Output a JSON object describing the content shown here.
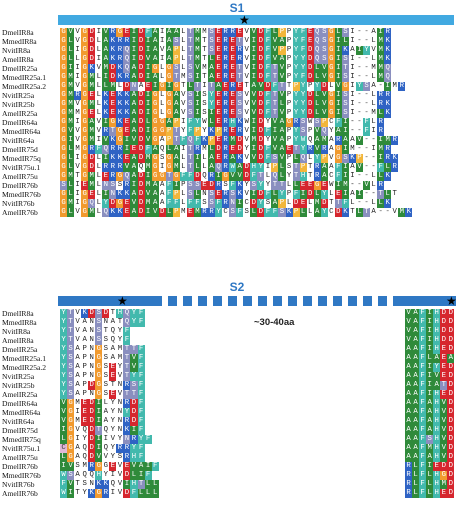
{
  "s1": {
    "label": "S1",
    "names": [
      "DmelIR8a",
      "MmedIR8a",
      "NvitIR8a",
      "AmelIR8a",
      "DmelIR25a",
      "MmedIR25a.1",
      "MmedIR25a.2",
      "NvitIR25a",
      "NvitIR25b",
      "AmelIR25a",
      "DmelIR64a",
      "MmedIR64a",
      "NvitIR64a",
      "DmelIR75d",
      "MmedIR75q",
      "NvitIR75u.1",
      "AmelIR75u",
      "DmelIR76b",
      "MmedIR76b",
      "NvitIR76b",
      "AmelIR76b"
    ],
    "seqs": [
      "GVVGDIVRGEIDFAIAALTMMSERREVVDFLPPYFEQSGLSI--AIR",
      "GLVGDLAKRRIDIAIASLTMTSERETVIDFVAPYFEQSGILI--LMK",
      "GLIGDLAKRQIDIAVAPLTMTSERERVIDFVPPYFDQSGIKAIYVMK",
      "GLLGDIAKRQIDVAIAPLTMTLERERVIDFVAPYYDQSGISI--LMK",
      "GIIGKVMDKQADIGLGSLSVMAERETVIDFTVPYYDLVGITI--MMQ",
      "GMIGMLIDKRADIALGTMSITAERETVIDFTVPYFDLVGISI--LMQ",
      "GMVGMLLMLDNAEIGIGTLTITAERETAVDFTTPYPYDLVGIYSA-IMR",
      "GMRGELKEKKADIGLGAVSISYERESVVDFTVPYYDLVGISI--LRR",
      "GMVGMLKEKKADIGLGAVSISYERESVVDFTLPYYDLVGISI--LRK",
      "GMMGELKEKKADIGLGAVSISIERESVVDFTVPYYDLVGISI--MLK",
      "GMIGAVIGKEADLGGAPIFYWLERHKWIDYVAGRSWSPCFI--FLR",
      "GVVGMVRTGEADIGGPTYFPYKPRERVIDFIAPYSPVQYAI--FIR",
      "GIVGMIVKGIVDVGAPTFQFKPERMDVMDYVAPYWQAMARAAV--IMR",
      "GLMGRFQRRIEDFAQLAITRMLDREDYIDFVAETYRVRAGIM--IMR",
      "GLIGDLIKKEADMGSGALTILAERAKVVDFSVPLQLYPVGSKP--IRK",
      "GLVGDLRRRVAQMGIGMLTLLAQRWADHYIPLSTPTRAAFIAV--FLR",
      "GMTGMLERGQADIGGTGFFDQRIGVVDFTLQLYTHTRACFII--LLK",
      "SLIEMLNSSRIDMAAFIPSSEDRSFKYSYYTTLLEEGEWIM--VLR",
      "GLIGELINKKADVAAFPLSLNSERSKVIDFLYPFIDLYLEIAI--TLT",
      "GMIGQLYDGEVDMAAFFLFFSSFRNICDYSAPLDELMDTTFL--LLK",
      "GLVGMLQKKEADIVDLPMEMRRYCSFSLDFFSKPLLAYCDKTLTA--VMK"
    ]
  },
  "s2": {
    "label": "S2",
    "gap_label": "~30-40aa",
    "names": [
      "DmelIR8a",
      "MmedIR8a",
      "NvitIR8a",
      "AmelIR8a",
      "DmelIR25a",
      "MmedIR25a.1",
      "MmedIR25a.2",
      "NvitIR25a",
      "NvitIR25b",
      "AmelIR25a",
      "DmelIR64a",
      "MmedIR64a",
      "NvitIR64a",
      "DmelIR75d",
      "MmedIR75q",
      "NvitIR75u.1",
      "AmelIR75u",
      "DmelIR76b",
      "MmedIR76b",
      "NvitIR76b",
      "AmelIR76b"
    ],
    "left": [
      "YTVKDSDTHQYF",
      "YTVANSNATQYF",
      "YTVANSTQYF",
      "YTVANSSQYF",
      "YSAPNGSAMTTF",
      "YSAPNGSAMTVF",
      "YSAPNGSEYTVF",
      "YSAPNGSEVTYF",
      "YSAPDGSTNRSF",
      "YSAPNGSEVTTF",
      "VGMEDILYNRDF",
      "VGIEDIAYNYDF",
      "VGMEDIAYNRDF",
      "IGVQDTQYNKIF",
      "LGIYDIIVYNRYF",
      "CGAQDIQYRRYF",
      "LGAQDVVYSRHF",
      "IVSMRGGEVEVAIF",
      "WSAQQHYIVDLIF",
      "FVTSNKKQVIHTLL",
      "WITYKGRIVDFLLL"
    ],
    "right": [
      "VAFIHDD",
      "VAFIHDD",
      "VAFIHDD",
      "VAFIHDD",
      "AAFIHED",
      "AAFLAEA",
      "AAFIYED",
      "AAFIVED",
      "AAFIATD",
      "AAFIHED",
      "AAFAHVD",
      "AAFAHVD",
      "AAFAHVD",
      "AAFAHVD",
      "AAFSHVD",
      "AAFMHVD",
      "AAFAHVD",
      "RLFIEDD",
      "RLFLHGD",
      "RLFLHMD",
      "RLFLHED"
    ]
  }
}
